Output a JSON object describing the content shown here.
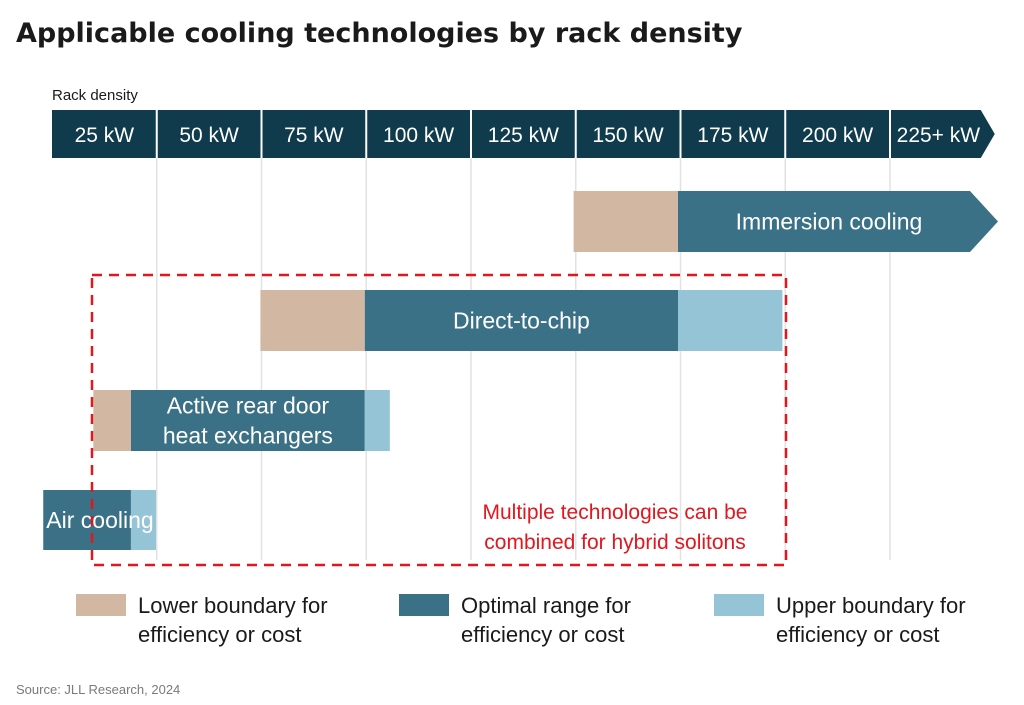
{
  "colors": {
    "header_bg": "#0f3b4c",
    "grid": "#e2e2e2",
    "lower": "#d2b8a3",
    "optimal": "#3b7186",
    "upper": "#95c4d6",
    "annotation": "#e3161e",
    "text_dark": "#1a1a1a",
    "source_text": "#7a7a7a"
  },
  "chart_data": {
    "type": "bar",
    "title": "Applicable cooling technologies by rack density",
    "axis_label": "Rack density",
    "categories": [
      "25 kW",
      "50 kW",
      "75 kW",
      "100 kW",
      "125 kW",
      "150 kW",
      "175 kW",
      "200 kW",
      "225+ kW"
    ],
    "axis_range_kw": [
      25,
      225
    ],
    "series": [
      {
        "name": "Immersion cooling",
        "lower": [
          150,
          175
        ],
        "optimal": [
          175,
          225
        ],
        "upper": null,
        "open_ended": true
      },
      {
        "name": "Direct-to-chip",
        "lower": [
          75,
          100
        ],
        "optimal": [
          100,
          175
        ],
        "upper": [
          175,
          200
        ]
      },
      {
        "name": "Active rear door heat exchangers",
        "lines": [
          "Active rear door",
          "heat exchangers"
        ],
        "lower": [
          35,
          44
        ],
        "optimal": [
          44,
          100
        ],
        "upper": [
          100,
          106
        ]
      },
      {
        "name": "Air cooling",
        "lower": null,
        "optimal": [
          23,
          44
        ],
        "upper": [
          44,
          50
        ]
      }
    ],
    "annotation": {
      "lines": [
        "Multiple technologies can be",
        "combined for hybrid solitons"
      ],
      "range_kw": [
        34,
        200
      ]
    },
    "legend": [
      {
        "key": "lower",
        "lines": [
          "Lower boundary for",
          "efficiency or cost"
        ]
      },
      {
        "key": "optimal",
        "lines": [
          "Optimal range for",
          "efficiency or cost"
        ]
      },
      {
        "key": "upper",
        "lines": [
          "Upper boundary for",
          "efficiency or cost"
        ]
      }
    ],
    "legend_position": "bottom",
    "source": "Source: JLL Research, 2024"
  }
}
